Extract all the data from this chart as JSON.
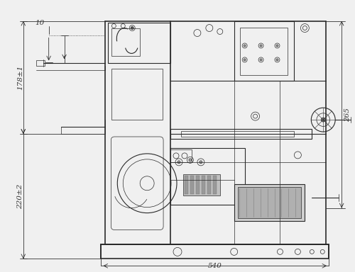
{
  "bg_color": "#f0f0f0",
  "line_color": "#2a2a2a",
  "dim_color": "#1a1a1a",
  "fig_width": 5.0,
  "fig_height": 3.84,
  "dpi": 100,
  "dim_10_text": "10",
  "dim_178_text": "178±1",
  "dim_220_text": "220±2",
  "dim_265_text": "265",
  "dim_540_text": "540",
  "fontsize": 7.5,
  "lw_main": 1.2,
  "lw_med": 0.8,
  "lw_thin": 0.5,
  "lw_dim": 0.6
}
